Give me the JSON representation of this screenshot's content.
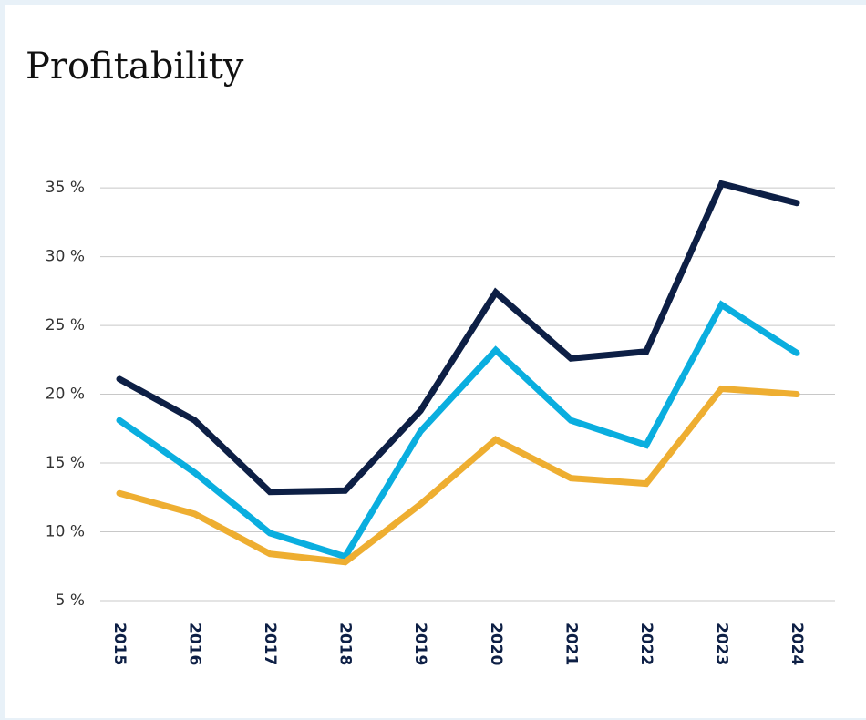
{
  "chart_data": {
    "type": "line",
    "title": "Profitability",
    "categories": [
      "2015",
      "2016",
      "2017",
      "2018",
      "2019",
      "2020",
      "2021",
      "2022",
      "2023",
      "2024"
    ],
    "series": [
      {
        "color": "#0d1f45",
        "values": [
          21.1,
          18.1,
          12.9,
          13.0,
          18.8,
          27.4,
          22.6,
          23.1,
          35.3,
          33.9
        ]
      },
      {
        "color": "#0aaedf",
        "values": [
          18.1,
          14.3,
          9.9,
          8.2,
          17.3,
          23.2,
          18.1,
          16.3,
          26.5,
          23.0
        ]
      },
      {
        "color": "#eeae31",
        "values": [
          12.8,
          11.3,
          8.4,
          7.8,
          12.0,
          16.7,
          13.9,
          13.5,
          20.4,
          20.0
        ]
      }
    ],
    "ylim": [
      5,
      36
    ],
    "yticks": [
      {
        "value": 5,
        "label": "5 %"
      },
      {
        "value": 10,
        "label": "10 %"
      },
      {
        "value": 15,
        "label": "15 %"
      },
      {
        "value": 20,
        "label": "20 %"
      },
      {
        "value": 25,
        "label": "25 %"
      },
      {
        "value": 30,
        "label": "30 %"
      },
      {
        "value": 35,
        "label": "35 %"
      }
    ],
    "grid": true
  }
}
